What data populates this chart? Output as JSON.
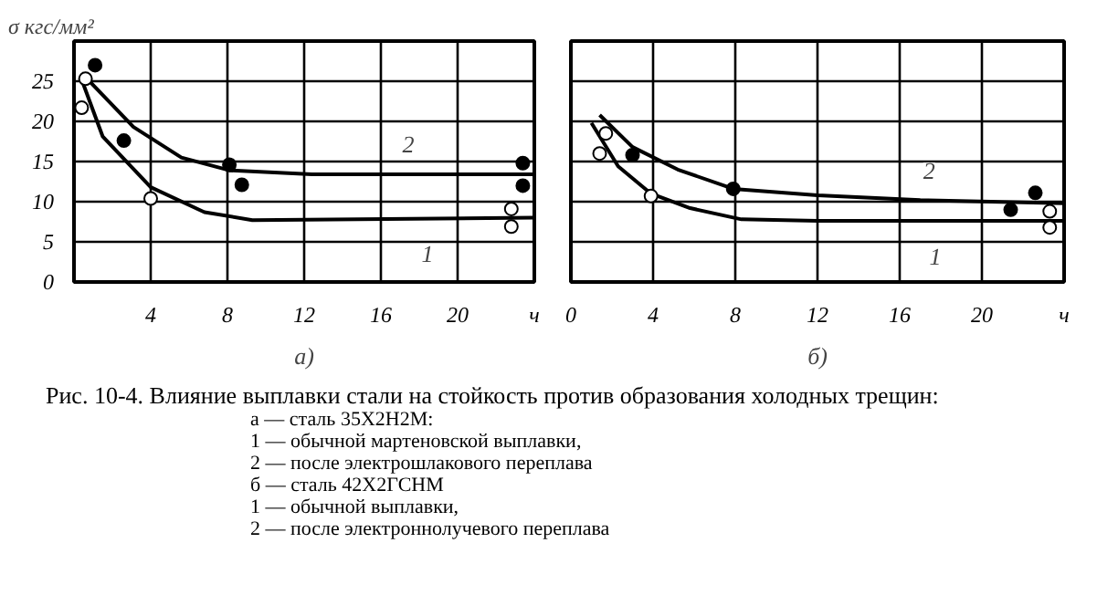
{
  "chart_data": [
    {
      "type": "line",
      "ylabel": "σ кгс/мм²",
      "xlabel": "а)",
      "xlim": [
        0,
        24
      ],
      "ylim": [
        0,
        30
      ],
      "xticks": [
        4,
        8,
        12,
        16,
        20,
        {
          "value": 24,
          "label": "ч"
        }
      ],
      "yticks": [
        0,
        5,
        10,
        15,
        20,
        25
      ],
      "grid": true,
      "series": [
        {
          "type": "line",
          "color": "#000000",
          "x": [
            0.4,
            1.5,
            4,
            6.8,
            9.3,
            24
          ],
          "values": [
            25.2,
            18.1,
            11.8,
            8.7,
            7.7,
            8.0
          ]
        },
        {
          "type": "line",
          "color": "#000000",
          "x": [
            0.4,
            3.1,
            5.6,
            8.1,
            12.4,
            24
          ],
          "values": [
            26,
            19.3,
            15.5,
            13.9,
            13.4,
            13.4
          ]
        },
        {
          "type": "scatter",
          "marker": "circle",
          "color": "#ffffff",
          "x": [
            0.6,
            0.4,
            4.0,
            22.8,
            22.8
          ],
          "values": [
            25.3,
            21.7,
            10.4,
            9.1,
            6.9
          ]
        },
        {
          "type": "scatter",
          "marker": "circle",
          "color": "#000000",
          "x": [
            1.1,
            2.6,
            8.1,
            8.75,
            23.4,
            23.4
          ],
          "values": [
            27.0,
            17.6,
            14.6,
            12.1,
            14.8,
            12.0
          ]
        }
      ],
      "annotations": [
        {
          "text": "1",
          "x": 18.5,
          "y": 7.9
        },
        {
          "text": "2",
          "x": 17.5,
          "y": 13.4
        }
      ]
    },
    {
      "type": "line",
      "xlabel": "б)",
      "xlim": [
        0,
        24
      ],
      "ylim": [
        0,
        30
      ],
      "xticks": [
        0,
        4,
        8,
        12,
        16,
        20,
        {
          "value": 24,
          "label": "ч"
        }
      ],
      "yticks": [
        0,
        5,
        10,
        15,
        20,
        25
      ],
      "tick_labels": "x",
      "grid": true,
      "series": [
        {
          "type": "line",
          "color": "#000000",
          "x": [
            1.0,
            2.3,
            3.9,
            5.8,
            8.3,
            12,
            24
          ],
          "values": [
            19.8,
            14.4,
            11.0,
            9.2,
            7.8,
            7.6,
            7.6
          ]
        },
        {
          "type": "line",
          "color": "#000000",
          "x": [
            1.4,
            3,
            5.2,
            7.9,
            12,
            17,
            24
          ],
          "values": [
            20.8,
            16.8,
            14.0,
            11.6,
            10.8,
            10.2,
            9.8
          ]
        },
        {
          "type": "scatter",
          "marker": "circle",
          "color": "#ffffff",
          "x": [
            1.7,
            1.4,
            3.9,
            23.3,
            23.3
          ],
          "values": [
            18.5,
            16.0,
            10.7,
            8.8,
            6.8
          ]
        },
        {
          "type": "scatter",
          "marker": "circle",
          "color": "#000000",
          "x": [
            3.0,
            7.9,
            21.4,
            22.6
          ],
          "values": [
            15.8,
            11.6,
            9.0,
            11.1
          ]
        }
      ],
      "annotations": [
        {
          "text": "1",
          "x": 17.8,
          "y": 7.6
        },
        {
          "text": "2",
          "x": 17.5,
          "y": 10.1
        }
      ]
    },
    {
      "type": "other",
      "annotations": [
        "Рис. 10-4. Влияние выплавки стали на стойкость против образования холодных трещин:",
        "а — сталь 35Х2Н2М:",
        "1 — обычной мартеновской выплавки,",
        "2 — после электрошлакового переплава",
        "б — сталь 42Х2ГСНМ",
        "1 — обычной выплавки,",
        "2 — после электроннолучевого переплава"
      ]
    }
  ]
}
